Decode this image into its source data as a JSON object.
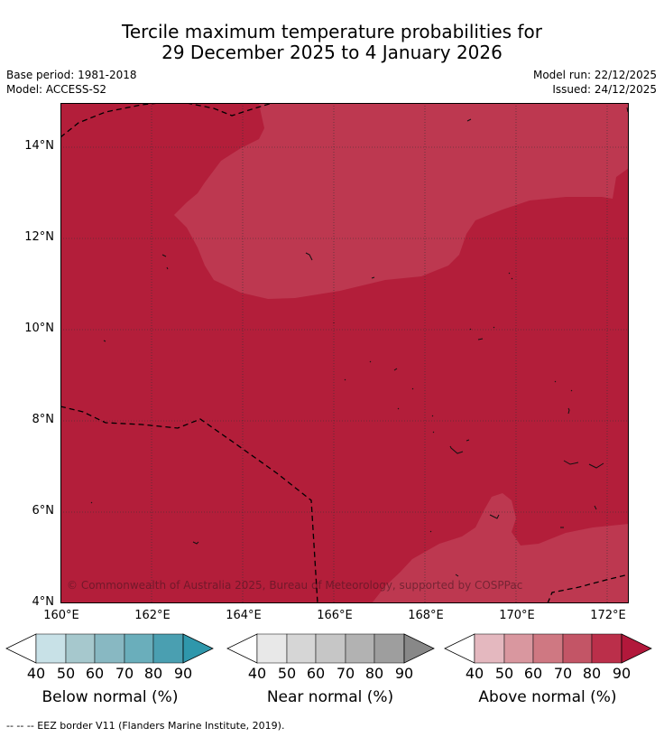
{
  "title": {
    "line1": "Tercile maximum temperature probabilities for",
    "line2": "29 December 2025 to 4 January 2026"
  },
  "meta": {
    "base_period": "Base period: 1981-2018",
    "model": "Model: ACCESS-S2",
    "model_run": "Model run: 22/12/2025",
    "issued": "Issued: 24/12/2025"
  },
  "map": {
    "lat_labels": [
      "14°N",
      "12°N",
      "10°N",
      "8°N",
      "6°N",
      "4°N"
    ],
    "lon_labels": [
      "160°E",
      "162°E",
      "164°E",
      "166°E",
      "168°E",
      "170°E",
      "172°E"
    ],
    "copyright": "© Commonwealth of Australia 2025, Bureau of Meteorology, supported by COSPPac",
    "colors": {
      "above_80": "#b31e3a",
      "above_70": "#bd3850"
    }
  },
  "colorbars": [
    {
      "title": "Below normal (%)",
      "ticks": [
        "40",
        "50",
        "60",
        "70",
        "80",
        "90"
      ],
      "colors": [
        "#ffffff",
        "#c8e1e7",
        "#a6c8cd",
        "#88b8c2",
        "#6aaebb",
        "#4a9fb1",
        "#2f97ab"
      ]
    },
    {
      "title": "Near normal (%)",
      "ticks": [
        "40",
        "50",
        "60",
        "70",
        "80",
        "90"
      ],
      "colors": [
        "#ffffff",
        "#e8e8e8",
        "#d6d6d6",
        "#c6c6c6",
        "#b2b2b2",
        "#9e9e9e",
        "#888888"
      ]
    },
    {
      "title": "Above normal (%)",
      "ticks": [
        "40",
        "50",
        "60",
        "70",
        "80",
        "90"
      ],
      "colors": [
        "#ffffff",
        "#e4b8bf",
        "#d9979f",
        "#cf7882",
        "#c35566",
        "#bb2f4a",
        "#b2183b"
      ]
    }
  ],
  "footnote": "-- -- -- EEZ border V11 (Flanders Marine Institute, 2019)."
}
